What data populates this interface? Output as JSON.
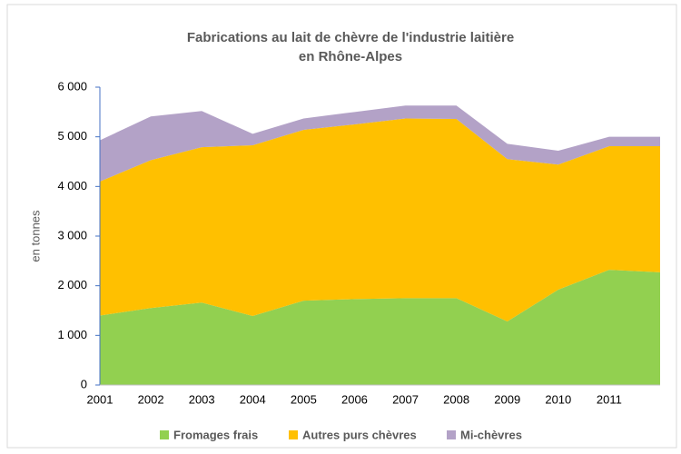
{
  "chart_data": {
    "type": "area",
    "title": [
      "Fabrications au lait de chèvre de l'industrie laitière",
      "en Rhône-Alpes"
    ],
    "y_label": "en tonnes",
    "categories": [
      "2001",
      "2002",
      "2003",
      "2004",
      "2005",
      "2006",
      "2007",
      "2008",
      "2009",
      "2010",
      "2011",
      null
    ],
    "stacked": true,
    "series": [
      {
        "name": "Fromages frais",
        "color": "#92d050",
        "values": [
          1400,
          1550,
          1660,
          1390,
          1700,
          1730,
          1750,
          1750,
          1280,
          1920,
          2320,
          2270
        ]
      },
      {
        "name": "Autres purs chèvres",
        "color": "#ffc000",
        "values": [
          2700,
          2980,
          3130,
          3440,
          3440,
          3520,
          3620,
          3610,
          3270,
          2520,
          2490,
          2540
        ]
      },
      {
        "name": "Mi-chèvres",
        "color": "#b3a2c7",
        "values": [
          830,
          880,
          730,
          230,
          230,
          250,
          260,
          270,
          310,
          280,
          190,
          190
        ]
      }
    ],
    "ylim": [
      0,
      6000
    ],
    "yticks": [
      0,
      {
        "value": 1000,
        "label": "1 000"
      },
      {
        "value": 2000,
        "label": "2 000"
      },
      {
        "value": 3000,
        "label": "3 000"
      },
      {
        "value": 4000,
        "label": "4 000"
      },
      {
        "value": 5000,
        "label": "5 000"
      },
      {
        "value": 6000,
        "label": "6 000"
      }
    ],
    "legend": "bottom",
    "grid": false
  }
}
